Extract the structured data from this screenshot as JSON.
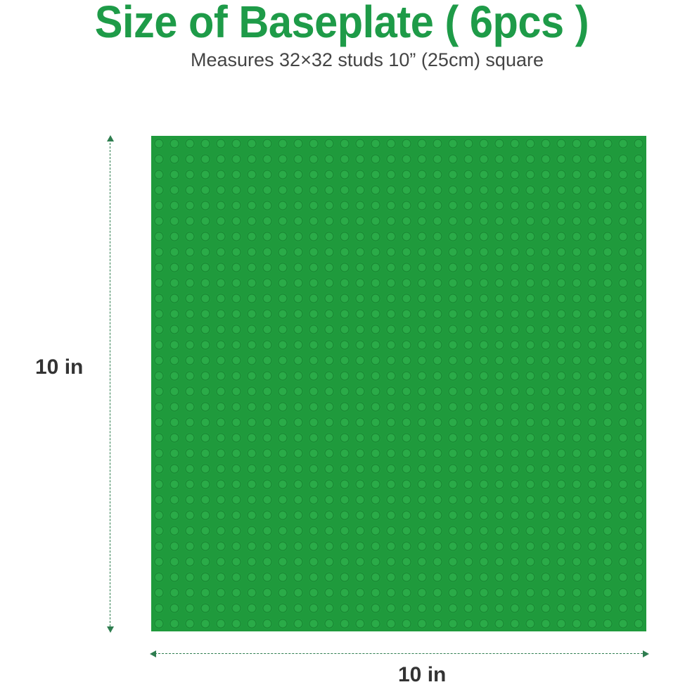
{
  "header": {
    "title": "Size of Baseplate ( 6pcs )",
    "subtitle": "Measures 32×32 studs 10” (25cm) square"
  },
  "plate": {
    "studs_per_side": 32,
    "color": "#1f9a3c"
  },
  "dimensions": {
    "height_label": "10 in",
    "width_label": "10 in"
  },
  "colors": {
    "title": "#1e9b48",
    "dimension_line": "#2e7d4f"
  }
}
